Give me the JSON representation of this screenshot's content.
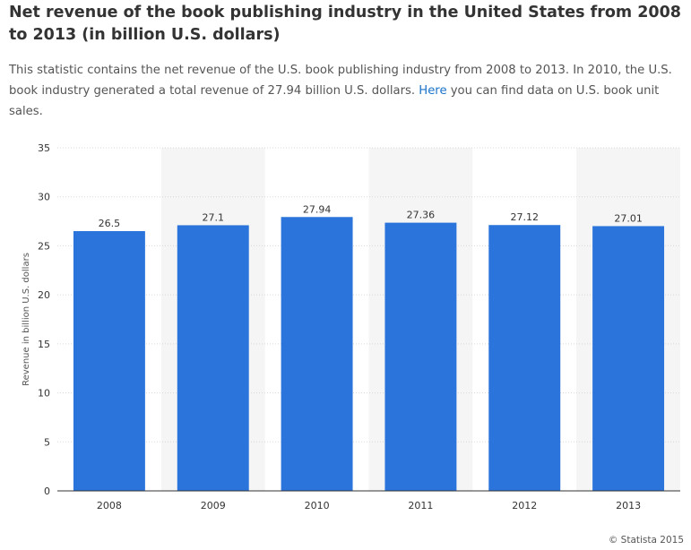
{
  "header": {
    "title": "Net revenue of the book publishing industry in the United States from 2008 to 2013 (in billion U.S. dollars)",
    "description_before_link": "This statistic contains the net revenue of the U.S. book publishing industry from 2008 to 2013. In 2010, the U.S. book industry generated a total revenue of 27.94 billion U.S. dollars. ",
    "link_text": "Here",
    "description_after_link": " you can find data on U.S. book unit sales."
  },
  "footer": {
    "credit": "© Statista 2015"
  },
  "colors": {
    "bar": "#2a74db",
    "band": "#f5f5f5",
    "grid": "#d8d8d8",
    "axis": "#333333",
    "link": "#1a73c9"
  },
  "chart_data": {
    "type": "bar",
    "categories": [
      "2008",
      "2009",
      "2010",
      "2011",
      "2012",
      "2013"
    ],
    "values": [
      26.5,
      27.1,
      27.94,
      27.36,
      27.12,
      27.01
    ],
    "value_labels": [
      "26.5",
      "27.1",
      "27.94",
      "27.36",
      "27.12",
      "27.01"
    ],
    "title": "",
    "xlabel": "",
    "ylabel": "Revenue in billion U.S. dollars",
    "ylim": [
      0,
      35
    ],
    "yticks": [
      0,
      5,
      10,
      15,
      20,
      25,
      30,
      35
    ],
    "grid": true,
    "legend": "none"
  }
}
